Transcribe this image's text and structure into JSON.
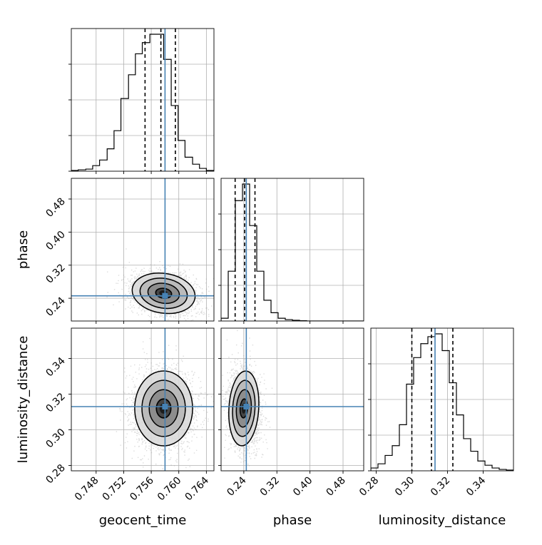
{
  "chart_data": {
    "type": "corner",
    "parameters": [
      {
        "name": "geocent_time",
        "range": [
          0.7444,
          0.7651
        ],
        "ticks": [
          0.748,
          0.752,
          0.756,
          0.76,
          0.764
        ],
        "tick_labels": [
          "0.748",
          "0.752",
          "0.756",
          "0.760",
          "0.764"
        ],
        "truth": 0.758,
        "quantiles": [
          0.7551,
          0.7574,
          0.7595
        ],
        "hist_bins": [
          0.7444,
          0.7454,
          0.7465,
          0.7475,
          0.7485,
          0.7496,
          0.7506,
          0.7516,
          0.7527,
          0.7537,
          0.7547,
          0.7558,
          0.7568,
          0.7578,
          0.7589,
          0.7599,
          0.7609,
          0.762,
          0.763,
          0.764,
          0.7651
        ],
        "hist_counts": [
          0.005,
          0.01,
          0.015,
          0.04,
          0.08,
          0.16,
          0.29,
          0.52,
          0.69,
          0.84,
          0.92,
          0.98,
          0.98,
          0.8,
          0.47,
          0.22,
          0.1,
          0.05,
          0.02,
          0.005
        ]
      },
      {
        "name": "phase",
        "range": [
          0.185,
          0.53
        ],
        "ticks": [
          0.24,
          0.32,
          0.4,
          0.48
        ],
        "tick_labels": [
          "0.24",
          "0.32",
          "0.40",
          "0.48"
        ],
        "truth": 0.246,
        "quantiles": [
          0.219,
          0.242,
          0.267
        ],
        "hist_bins": [
          0.185,
          0.2023,
          0.2195,
          0.2368,
          0.254,
          0.2713,
          0.2885,
          0.3058,
          0.323,
          0.3403,
          0.3575,
          0.3748,
          0.392,
          0.4093,
          0.4265,
          0.4438,
          0.461,
          0.4783,
          0.4955,
          0.5128,
          0.53
        ],
        "hist_counts": [
          0.02,
          0.36,
          0.87,
          0.99,
          0.69,
          0.36,
          0.15,
          0.06,
          0.02,
          0.01,
          0.005,
          0.002,
          0.0,
          0.0,
          0.0,
          0.0,
          0.0,
          0.0,
          0.0,
          0.0
        ]
      },
      {
        "name": "luminosity_distance",
        "range": [
          0.277,
          0.357
        ],
        "ticks": [
          0.28,
          0.3,
          0.32,
          0.34
        ],
        "tick_labels": [
          "0.28",
          "0.30",
          "0.32",
          "0.34"
        ],
        "truth": 0.313,
        "quantiles": [
          0.3,
          0.311,
          0.323
        ],
        "hist_bins": [
          0.277,
          0.281,
          0.285,
          0.289,
          0.293,
          0.297,
          0.301,
          0.305,
          0.309,
          0.313,
          0.317,
          0.321,
          0.325,
          0.329,
          0.333,
          0.337,
          0.341,
          0.345,
          0.349,
          0.353,
          0.357
        ],
        "hist_counts": [
          0.02,
          0.05,
          0.11,
          0.18,
          0.33,
          0.62,
          0.81,
          0.91,
          0.96,
          0.98,
          0.86,
          0.63,
          0.4,
          0.23,
          0.14,
          0.07,
          0.04,
          0.02,
          0.01,
          0.005
        ]
      }
    ],
    "pairs": [
      {
        "x": "geocent_time",
        "y": "phase",
        "mean": [
          0.7578,
          0.252
        ],
        "sd": [
          0.0023,
          0.024
        ],
        "corr": -0.25,
        "contour_levels": [
          0.5,
          1.0,
          1.5,
          2.0
        ]
      },
      {
        "x": "geocent_time",
        "y": "luminosity_distance",
        "mean": [
          0.7578,
          0.312
        ],
        "sd": [
          0.0021,
          0.0105
        ],
        "corr": 0.0,
        "contour_levels": [
          0.5,
          1.0,
          1.5,
          2.0
        ]
      },
      {
        "x": "phase",
        "y": "luminosity_distance",
        "mean": [
          0.24,
          0.312
        ],
        "sd": [
          0.018,
          0.0105
        ],
        "corr": -0.1,
        "contour_levels": [
          0.5,
          1.0,
          1.5,
          2.0
        ]
      }
    ],
    "truth_color": "#4682b4",
    "quantile_line_color": "#000000",
    "grid": true
  }
}
